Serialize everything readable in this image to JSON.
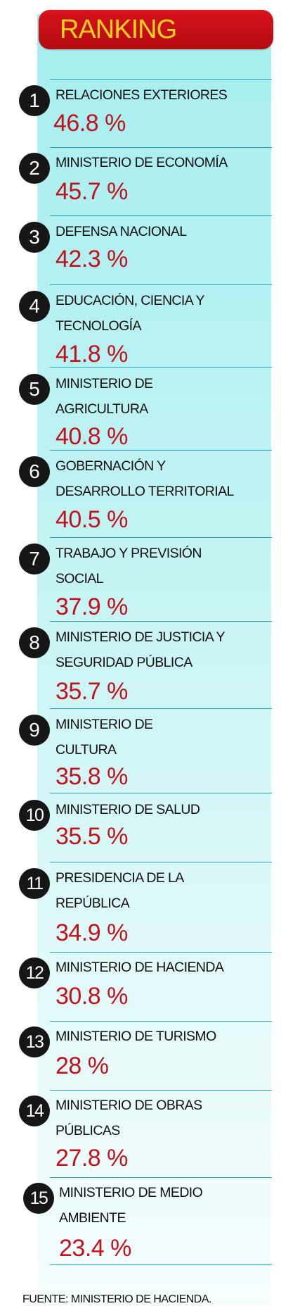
{
  "title": "RANKING",
  "source": "FUENTE: MINISTERIO DE HACIENDA.",
  "chart_data": {
    "type": "table",
    "title": "RANKING",
    "columns": [
      "rank",
      "name",
      "value"
    ],
    "rows": [
      {
        "rank": "1",
        "lines": [
          "RELACIONES  EXTERIORES"
        ],
        "value_label": "46.8 %",
        "value": 46.8
      },
      {
        "rank": "2",
        "lines": [
          "MINISTERIO DE ECONOMÍA"
        ],
        "value_label": "45.7 %",
        "value": 45.7
      },
      {
        "rank": "3",
        "lines": [
          "DEFENSA NACIONAL"
        ],
        "value_label": "42.3 %",
        "value": 42.3
      },
      {
        "rank": "4",
        "lines": [
          "EDUCACIÓN, CIENCIA Y",
          "TECNOLOGÍA"
        ],
        "value_label": "41.8 %",
        "value": 41.8
      },
      {
        "rank": "5",
        "lines": [
          "MINISTERIO DE",
          "AGRICULTURA"
        ],
        "value_label": "40.8 %",
        "value": 40.8
      },
      {
        "rank": "6",
        "lines": [
          "GOBERNACIÓN Y",
          "DESARROLLO TERRITORIAL"
        ],
        "value_label": "40.5 %",
        "value": 40.5
      },
      {
        "rank": "7",
        "lines": [
          "TRABAJO Y PREVISIÓN",
          "SOCIAL"
        ],
        "value_label": "37.9 %",
        "value": 37.9
      },
      {
        "rank": "8",
        "lines": [
          "MINISTERIO DE JUSTICIA Y",
          "SEGURIDAD PÚBLICA"
        ],
        "value_label": "35.7 %",
        "value": 35.7
      },
      {
        "rank": "9",
        "lines": [
          "MINISTERIO DE",
          "CULTURA"
        ],
        "value_label": "35.8 %",
        "value": 35.8
      },
      {
        "rank": "10",
        "lines": [
          "MINISTERIO DE SALUD"
        ],
        "value_label": "35.5 %",
        "value": 35.5
      },
      {
        "rank": "11",
        "lines": [
          "PRESIDENCIA DE LA",
          "REPÚBLICA"
        ],
        "value_label": "34.9 %",
        "value": 34.9
      },
      {
        "rank": "12",
        "lines": [
          "MINISTERIO DE HACIENDA"
        ],
        "value_label": "30.8 %",
        "value": 30.8
      },
      {
        "rank": "13",
        "lines": [
          "MINISTERIO DE TURISMO"
        ],
        "value_label": "28 %",
        "value": 28
      },
      {
        "rank": "14",
        "lines": [
          "MINISTERIO DE OBRAS",
          "PÚBLICAS"
        ],
        "value_label": "27.8 %",
        "value": 27.8
      },
      {
        "rank": "15",
        "lines": [
          "MINISTERIO DE MEDIO",
          "AMBIENTE"
        ],
        "value_label": "23.4 %",
        "value": 23.4
      }
    ]
  }
}
